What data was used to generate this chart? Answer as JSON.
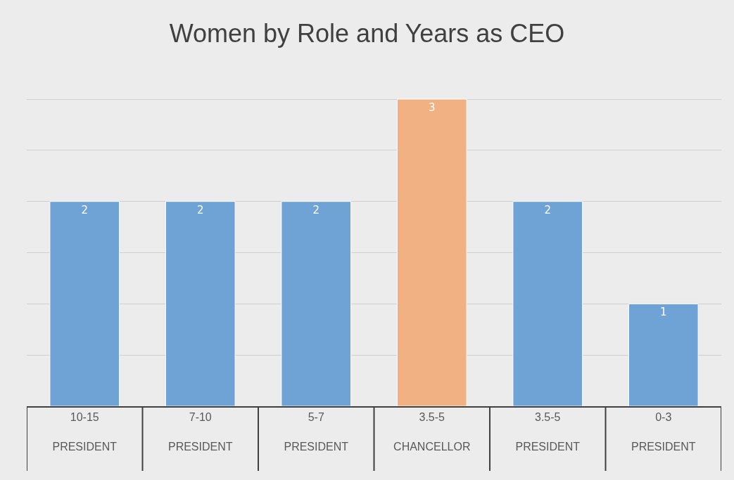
{
  "chart_data": {
    "type": "bar",
    "title": "Women by Role and Years as CEO",
    "categories": [
      "10-15\nPRESIDENT",
      "7-10\nPRESIDENT",
      "5-7\nPRESIDENT",
      "3.5-5\nCHANCELLOR",
      "3.5-5\nPRESIDENT",
      "0-3\nPRESIDENT"
    ],
    "values": [
      2,
      2,
      2,
      3,
      2,
      1
    ],
    "colors": [
      "#6fa3d6",
      "#6fa3d6",
      "#6fa3d6",
      "#f2b183",
      "#6fa3d6",
      "#6fa3d6"
    ],
    "grid": "y",
    "tick_labels": "x",
    "data_labels": true,
    "legend": false
  }
}
